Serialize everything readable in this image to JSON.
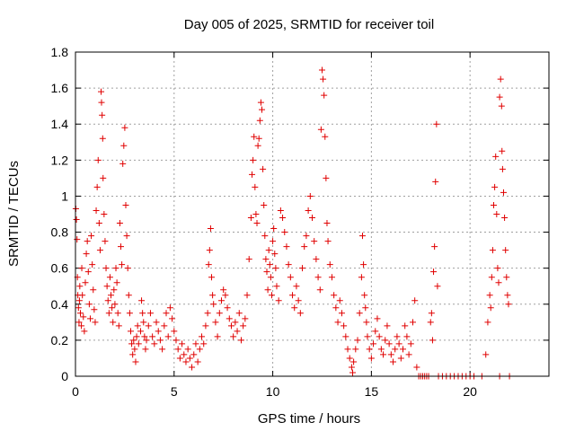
{
  "chart_data": {
    "type": "scatter",
    "title": "Day 005 of 2025, SRMTID for receiver toil",
    "xlabel": "GPS time / hours",
    "ylabel": "SRMTID / TECUs",
    "xlim": [
      0,
      24
    ],
    "ylim": [
      0,
      1.8
    ],
    "xticks": [
      0,
      5,
      10,
      15,
      20
    ],
    "yticks": [
      0,
      0.2,
      0.4,
      0.6,
      0.8,
      1,
      1.2,
      1.4,
      1.6,
      1.8
    ],
    "xtick_labels": [
      "0",
      "5",
      "10",
      "15",
      "20"
    ],
    "ytick_labels": [
      "0",
      "0.2",
      "0.4",
      "0.6",
      "0.8",
      "1",
      "1.2",
      "1.4",
      "1.6",
      "1.8"
    ],
    "grid": true,
    "marker": "+",
    "color": "#e00000",
    "series": [
      {
        "name": "SRMTID",
        "points": [
          [
            0.02,
            0.93
          ],
          [
            0.05,
            0.87
          ],
          [
            0.08,
            0.76
          ],
          [
            0.1,
            0.55
          ],
          [
            0.12,
            0.45
          ],
          [
            0.15,
            0.38
          ],
          [
            0.18,
            0.3
          ],
          [
            0.2,
            0.42
          ],
          [
            0.22,
            0.5
          ],
          [
            0.25,
            0.35
          ],
          [
            0.3,
            0.28
          ],
          [
            0.32,
            0.6
          ],
          [
            0.35,
            0.45
          ],
          [
            0.4,
            0.33
          ],
          [
            0.45,
            0.25
          ],
          [
            0.5,
            0.52
          ],
          [
            0.55,
            0.68
          ],
          [
            0.6,
            0.75
          ],
          [
            0.65,
            0.58
          ],
          [
            0.7,
            0.4
          ],
          [
            0.75,
            0.32
          ],
          [
            0.8,
            0.78
          ],
          [
            0.85,
            0.62
          ],
          [
            0.9,
            0.48
          ],
          [
            0.95,
            0.37
          ],
          [
            1.0,
            0.3
          ],
          [
            1.05,
            0.92
          ],
          [
            1.1,
            1.05
          ],
          [
            1.15,
            1.2
          ],
          [
            1.2,
            0.85
          ],
          [
            1.25,
            0.7
          ],
          [
            1.3,
            1.58
          ],
          [
            1.32,
            1.52
          ],
          [
            1.35,
            1.45
          ],
          [
            1.38,
            1.32
          ],
          [
            1.4,
            1.1
          ],
          [
            1.45,
            0.9
          ],
          [
            1.5,
            0.75
          ],
          [
            1.55,
            0.6
          ],
          [
            1.6,
            0.5
          ],
          [
            1.65,
            0.42
          ],
          [
            1.7,
            0.35
          ],
          [
            1.75,
            0.55
          ],
          [
            1.8,
            0.45
          ],
          [
            1.85,
            0.38
          ],
          [
            1.9,
            0.3
          ],
          [
            1.95,
            0.48
          ],
          [
            2.0,
            0.4
          ],
          [
            2.05,
            0.6
          ],
          [
            2.1,
            0.52
          ],
          [
            2.15,
            0.35
          ],
          [
            2.2,
            0.28
          ],
          [
            2.25,
            0.85
          ],
          [
            2.3,
            0.72
          ],
          [
            2.35,
            0.62
          ],
          [
            2.4,
            1.18
          ],
          [
            2.45,
            1.28
          ],
          [
            2.5,
            1.38
          ],
          [
            2.55,
            0.95
          ],
          [
            2.6,
            0.78
          ],
          [
            2.65,
            0.6
          ],
          [
            2.7,
            0.45
          ],
          [
            2.75,
            0.35
          ],
          [
            2.8,
            0.25
          ],
          [
            2.85,
            0.18
          ],
          [
            2.9,
            0.12
          ],
          [
            2.95,
            0.2
          ],
          [
            3.0,
            0.15
          ],
          [
            3.05,
            0.08
          ],
          [
            3.1,
            0.22
          ],
          [
            3.15,
            0.28
          ],
          [
            3.2,
            0.18
          ],
          [
            3.3,
            0.25
          ],
          [
            3.35,
            0.42
          ],
          [
            3.4,
            0.35
          ],
          [
            3.45,
            0.3
          ],
          [
            3.5,
            0.22
          ],
          [
            3.55,
            0.15
          ],
          [
            3.6,
            0.2
          ],
          [
            3.7,
            0.28
          ],
          [
            3.8,
            0.35
          ],
          [
            3.9,
            0.22
          ],
          [
            4.0,
            0.18
          ],
          [
            4.1,
            0.3
          ],
          [
            4.2,
            0.25
          ],
          [
            4.3,
            0.2
          ],
          [
            4.4,
            0.15
          ],
          [
            4.5,
            0.28
          ],
          [
            4.6,
            0.35
          ],
          [
            4.7,
            0.22
          ],
          [
            4.8,
            0.38
          ],
          [
            4.9,
            0.32
          ],
          [
            5.0,
            0.25
          ],
          [
            5.1,
            0.2
          ],
          [
            5.2,
            0.15
          ],
          [
            5.3,
            0.1
          ],
          [
            5.4,
            0.18
          ],
          [
            5.5,
            0.12
          ],
          [
            5.6,
            0.08
          ],
          [
            5.7,
            0.15
          ],
          [
            5.8,
            0.1
          ],
          [
            5.9,
            0.05
          ],
          [
            6.0,
            0.12
          ],
          [
            6.1,
            0.18
          ],
          [
            6.2,
            0.08
          ],
          [
            6.3,
            0.15
          ],
          [
            6.4,
            0.22
          ],
          [
            6.5,
            0.18
          ],
          [
            6.6,
            0.28
          ],
          [
            6.7,
            0.35
          ],
          [
            6.75,
            0.62
          ],
          [
            6.8,
            0.7
          ],
          [
            6.85,
            0.82
          ],
          [
            6.9,
            0.55
          ],
          [
            6.95,
            0.45
          ],
          [
            7.0,
            0.4
          ],
          [
            7.1,
            0.3
          ],
          [
            7.2,
            0.22
          ],
          [
            7.3,
            0.35
          ],
          [
            7.4,
            0.42
          ],
          [
            7.5,
            0.48
          ],
          [
            7.6,
            0.45
          ],
          [
            7.7,
            0.38
          ],
          [
            7.8,
            0.32
          ],
          [
            7.9,
            0.28
          ],
          [
            8.0,
            0.22
          ],
          [
            8.1,
            0.3
          ],
          [
            8.2,
            0.25
          ],
          [
            8.3,
            0.35
          ],
          [
            8.4,
            0.2
          ],
          [
            8.5,
            0.28
          ],
          [
            8.6,
            0.32
          ],
          [
            8.7,
            0.45
          ],
          [
            8.8,
            0.65
          ],
          [
            8.9,
            0.88
          ],
          [
            8.95,
            1.12
          ],
          [
            9.0,
            1.2
          ],
          [
            9.05,
            1.33
          ],
          [
            9.1,
            1.05
          ],
          [
            9.15,
            0.9
          ],
          [
            9.2,
            0.85
          ],
          [
            9.25,
            1.28
          ],
          [
            9.3,
            1.32
          ],
          [
            9.35,
            1.42
          ],
          [
            9.4,
            1.52
          ],
          [
            9.45,
            1.48
          ],
          [
            9.5,
            1.15
          ],
          [
            9.55,
            0.95
          ],
          [
            9.6,
            0.78
          ],
          [
            9.65,
            0.65
          ],
          [
            9.7,
            0.58
          ],
          [
            9.75,
            0.48
          ],
          [
            9.8,
            0.7
          ],
          [
            9.85,
            0.62
          ],
          [
            9.9,
            0.55
          ],
          [
            9.95,
            0.45
          ],
          [
            10.0,
            0.75
          ],
          [
            10.05,
            0.82
          ],
          [
            10.1,
            0.68
          ],
          [
            10.15,
            0.6
          ],
          [
            10.2,
            0.5
          ],
          [
            10.3,
            0.42
          ],
          [
            10.4,
            0.92
          ],
          [
            10.5,
            0.88
          ],
          [
            10.6,
            0.8
          ],
          [
            10.7,
            0.72
          ],
          [
            10.8,
            0.62
          ],
          [
            10.9,
            0.55
          ],
          [
            11.0,
            0.45
          ],
          [
            11.1,
            0.38
          ],
          [
            11.2,
            0.5
          ],
          [
            11.3,
            0.42
          ],
          [
            11.4,
            0.35
          ],
          [
            11.5,
            0.6
          ],
          [
            11.6,
            0.72
          ],
          [
            11.7,
            0.78
          ],
          [
            11.8,
            0.92
          ],
          [
            11.9,
            1.0
          ],
          [
            12.0,
            0.88
          ],
          [
            12.1,
            0.75
          ],
          [
            12.2,
            0.65
          ],
          [
            12.3,
            0.55
          ],
          [
            12.4,
            0.48
          ],
          [
            12.45,
            1.37
          ],
          [
            12.5,
            1.7
          ],
          [
            12.55,
            1.65
          ],
          [
            12.6,
            1.56
          ],
          [
            12.65,
            1.33
          ],
          [
            12.7,
            1.1
          ],
          [
            12.75,
            0.85
          ],
          [
            12.8,
            0.75
          ],
          [
            12.9,
            0.62
          ],
          [
            13.0,
            0.55
          ],
          [
            13.1,
            0.45
          ],
          [
            13.2,
            0.38
          ],
          [
            13.3,
            0.3
          ],
          [
            13.4,
            0.42
          ],
          [
            13.5,
            0.35
          ],
          [
            13.6,
            0.28
          ],
          [
            13.7,
            0.22
          ],
          [
            13.8,
            0.15
          ],
          [
            13.9,
            0.1
          ],
          [
            14.0,
            0.05
          ],
          [
            14.05,
            0.02
          ],
          [
            14.1,
            0.08
          ],
          [
            14.2,
            0.15
          ],
          [
            14.3,
            0.2
          ],
          [
            14.4,
            0.35
          ],
          [
            14.5,
            0.55
          ],
          [
            14.55,
            0.78
          ],
          [
            14.6,
            0.62
          ],
          [
            14.65,
            0.45
          ],
          [
            14.7,
            0.38
          ],
          [
            14.75,
            0.3
          ],
          [
            14.8,
            0.22
          ],
          [
            14.9,
            0.15
          ],
          [
            15.0,
            0.1
          ],
          [
            15.1,
            0.18
          ],
          [
            15.2,
            0.25
          ],
          [
            15.3,
            0.32
          ],
          [
            15.4,
            0.22
          ],
          [
            15.5,
            0.15
          ],
          [
            15.6,
            0.12
          ],
          [
            15.7,
            0.2
          ],
          [
            15.8,
            0.28
          ],
          [
            15.9,
            0.18
          ],
          [
            16.0,
            0.12
          ],
          [
            16.1,
            0.08
          ],
          [
            16.2,
            0.15
          ],
          [
            16.3,
            0.22
          ],
          [
            16.4,
            0.18
          ],
          [
            16.5,
            0.1
          ],
          [
            16.6,
            0.15
          ],
          [
            16.7,
            0.28
          ],
          [
            16.8,
            0.22
          ],
          [
            16.9,
            0.12
          ],
          [
            17.0,
            0.18
          ],
          [
            17.1,
            0.3
          ],
          [
            17.2,
            0.42
          ],
          [
            17.3,
            0.05
          ],
          [
            17.4,
            0.0
          ],
          [
            17.5,
            0.0
          ],
          [
            17.6,
            0.0
          ],
          [
            17.7,
            0.0
          ],
          [
            17.8,
            0.0
          ],
          [
            17.9,
            0.0
          ],
          [
            18.0,
            0.3
          ],
          [
            18.05,
            0.35
          ],
          [
            18.1,
            0.2
          ],
          [
            18.15,
            0.58
          ],
          [
            18.2,
            0.72
          ],
          [
            18.25,
            1.08
          ],
          [
            18.3,
            1.4
          ],
          [
            18.35,
            0.5
          ],
          [
            18.4,
            0.0
          ],
          [
            18.6,
            0.0
          ],
          [
            18.8,
            0.0
          ],
          [
            19.0,
            0.0
          ],
          [
            19.2,
            0.0
          ],
          [
            19.4,
            0.0
          ],
          [
            19.6,
            0.0
          ],
          [
            19.8,
            0.0
          ],
          [
            20.0,
            0.0
          ],
          [
            20.2,
            0.0
          ],
          [
            20.6,
            0.0
          ],
          [
            20.8,
            0.12
          ],
          [
            20.9,
            0.3
          ],
          [
            21.0,
            0.45
          ],
          [
            21.05,
            0.38
          ],
          [
            21.1,
            0.55
          ],
          [
            21.15,
            0.7
          ],
          [
            21.2,
            0.95
          ],
          [
            21.25,
            1.05
          ],
          [
            21.3,
            1.22
          ],
          [
            21.35,
            0.9
          ],
          [
            21.4,
            0.6
          ],
          [
            21.45,
            0.52
          ],
          [
            21.5,
            1.55
          ],
          [
            21.55,
            1.65
          ],
          [
            21.6,
            1.5
          ],
          [
            21.62,
            1.25
          ],
          [
            21.65,
            1.15
          ],
          [
            21.7,
            1.02
          ],
          [
            21.75,
            0.88
          ],
          [
            21.8,
            0.7
          ],
          [
            21.85,
            0.55
          ],
          [
            21.9,
            0.45
          ],
          [
            21.95,
            0.4
          ],
          [
            21.5,
            0.0
          ],
          [
            22.0,
            0.0
          ]
        ]
      }
    ]
  }
}
